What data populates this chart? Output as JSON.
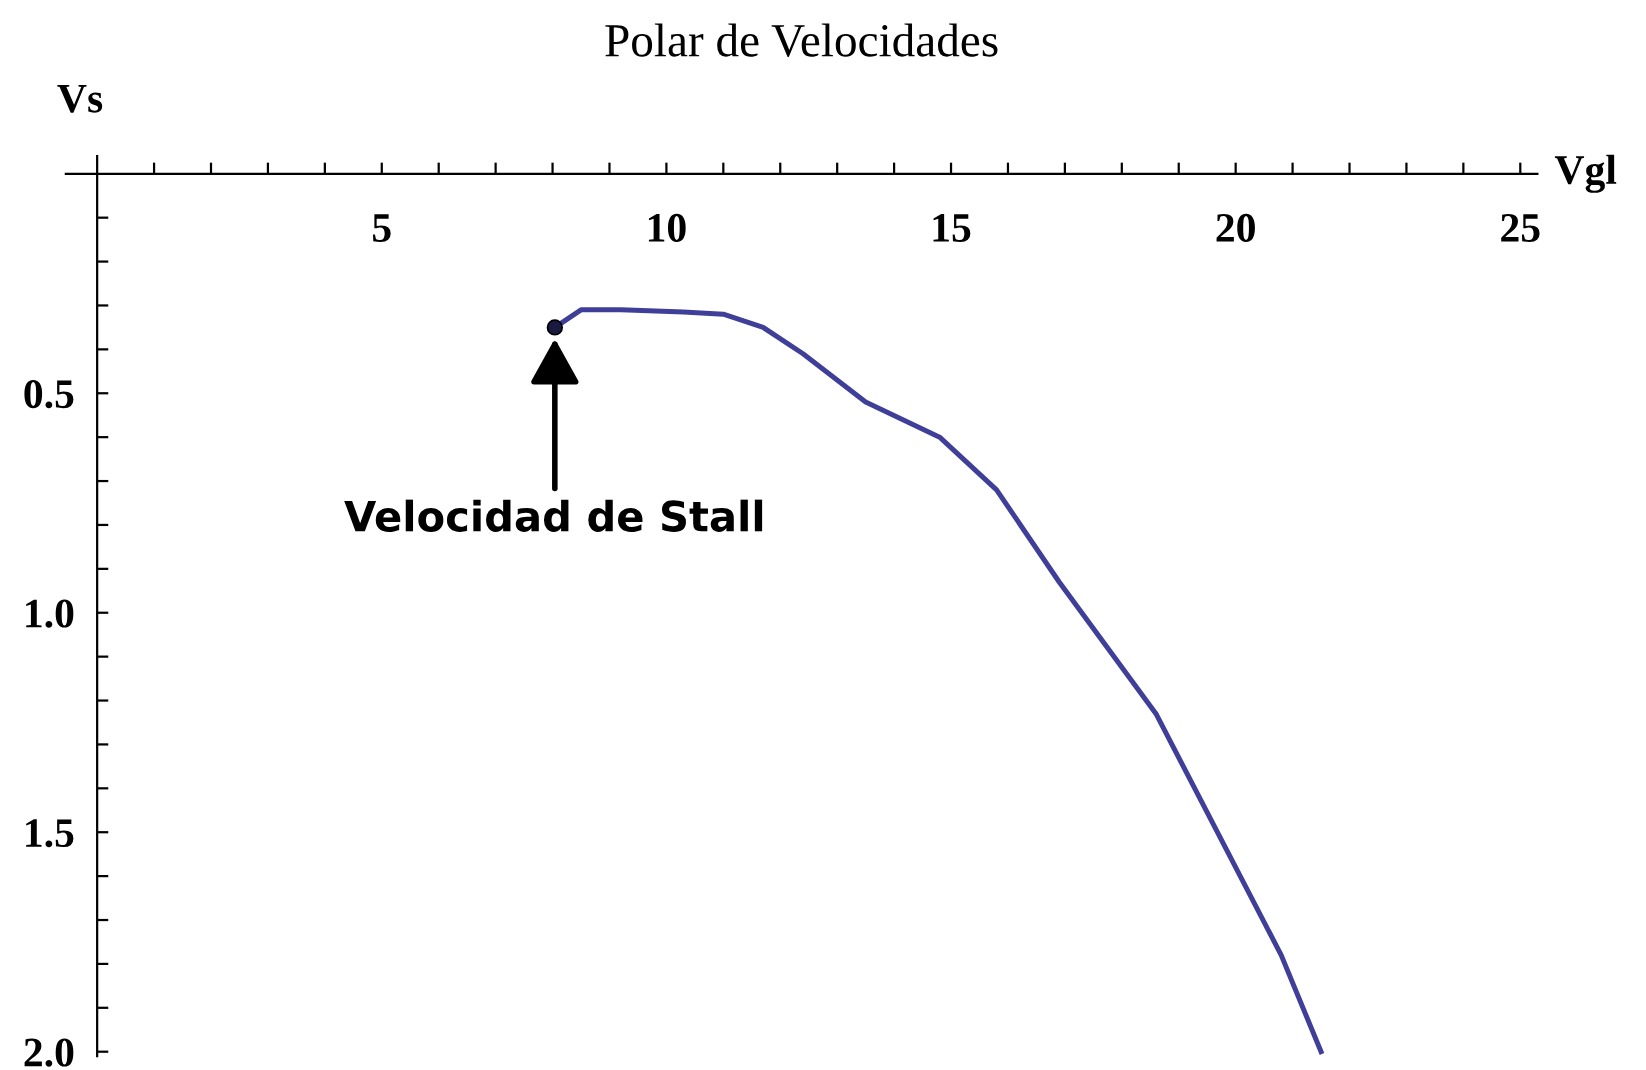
{
  "chart_data": {
    "type": "line",
    "title": "Polar de Velocidades",
    "xlabel": "Vgl",
    "ylabel": "Vs",
    "x": [
      8.04,
      8.5,
      9.2,
      10.3,
      11.0,
      11.7,
      12.4,
      13.5,
      14.8,
      15.8,
      16.9,
      18.6,
      20.8,
      21.5
    ],
    "series": [
      {
        "color": "#3f3f9a",
        "values": [
          0.35,
          0.31,
          0.31,
          0.315,
          0.32,
          0.35,
          0.41,
          0.52,
          0.6,
          0.72,
          0.93,
          1.23,
          1.78,
          2.0
        ]
      },
      {
        "type": "scatter",
        "color": "#1a1a40",
        "x": [
          8.04
        ],
        "values": [
          0.35
        ]
      }
    ],
    "annotations": [
      {
        "text": "Velocidad de Stall",
        "x": 8.04,
        "y": 0.35
      }
    ],
    "xlim": [
      -0.55,
      25.3
    ],
    "ylim": [
      2.01,
      -0.04
    ],
    "xticks": [
      {
        "value": 1,
        "label": null
      },
      {
        "value": 2,
        "label": null
      },
      {
        "value": 3,
        "label": null
      },
      {
        "value": 4,
        "label": null
      },
      5,
      {
        "value": 6,
        "label": null
      },
      {
        "value": 7,
        "label": null
      },
      {
        "value": 8,
        "label": null
      },
      {
        "value": 9,
        "label": null
      },
      10,
      {
        "value": 11,
        "label": null
      },
      {
        "value": 12,
        "label": null
      },
      {
        "value": 13,
        "label": null
      },
      {
        "value": 14,
        "label": null
      },
      15,
      {
        "value": 16,
        "label": null
      },
      {
        "value": 17,
        "label": null
      },
      {
        "value": 18,
        "label": null
      },
      {
        "value": 19,
        "label": null
      },
      20,
      {
        "value": 21,
        "label": null
      },
      {
        "value": 22,
        "label": null
      },
      {
        "value": 23,
        "label": null
      },
      {
        "value": 24,
        "label": null
      },
      25
    ],
    "yticks": [
      {
        "value": 0.1,
        "label": null
      },
      {
        "value": 0.2,
        "label": null
      },
      {
        "value": 0.3,
        "label": null
      },
      {
        "value": 0.4,
        "label": null
      },
      {
        "value": 0.5,
        "label": "0.5"
      },
      {
        "value": 0.6,
        "label": null
      },
      {
        "value": 0.7,
        "label": null
      },
      {
        "value": 0.8,
        "label": null
      },
      {
        "value": 0.9,
        "label": null
      },
      {
        "value": 1.0,
        "label": "1.0"
      },
      {
        "value": 1.1,
        "label": null
      },
      {
        "value": 1.2,
        "label": null
      },
      {
        "value": 1.3,
        "label": null
      },
      {
        "value": 1.4,
        "label": null
      },
      {
        "value": 1.5,
        "label": "1.5"
      },
      {
        "value": 1.6,
        "label": null
      },
      {
        "value": 1.7,
        "label": null
      },
      {
        "value": 1.8,
        "label": null
      },
      {
        "value": 1.9,
        "label": null
      },
      {
        "value": 2.0,
        "label": "2.0"
      }
    ],
    "grid": false,
    "legend": false
  }
}
